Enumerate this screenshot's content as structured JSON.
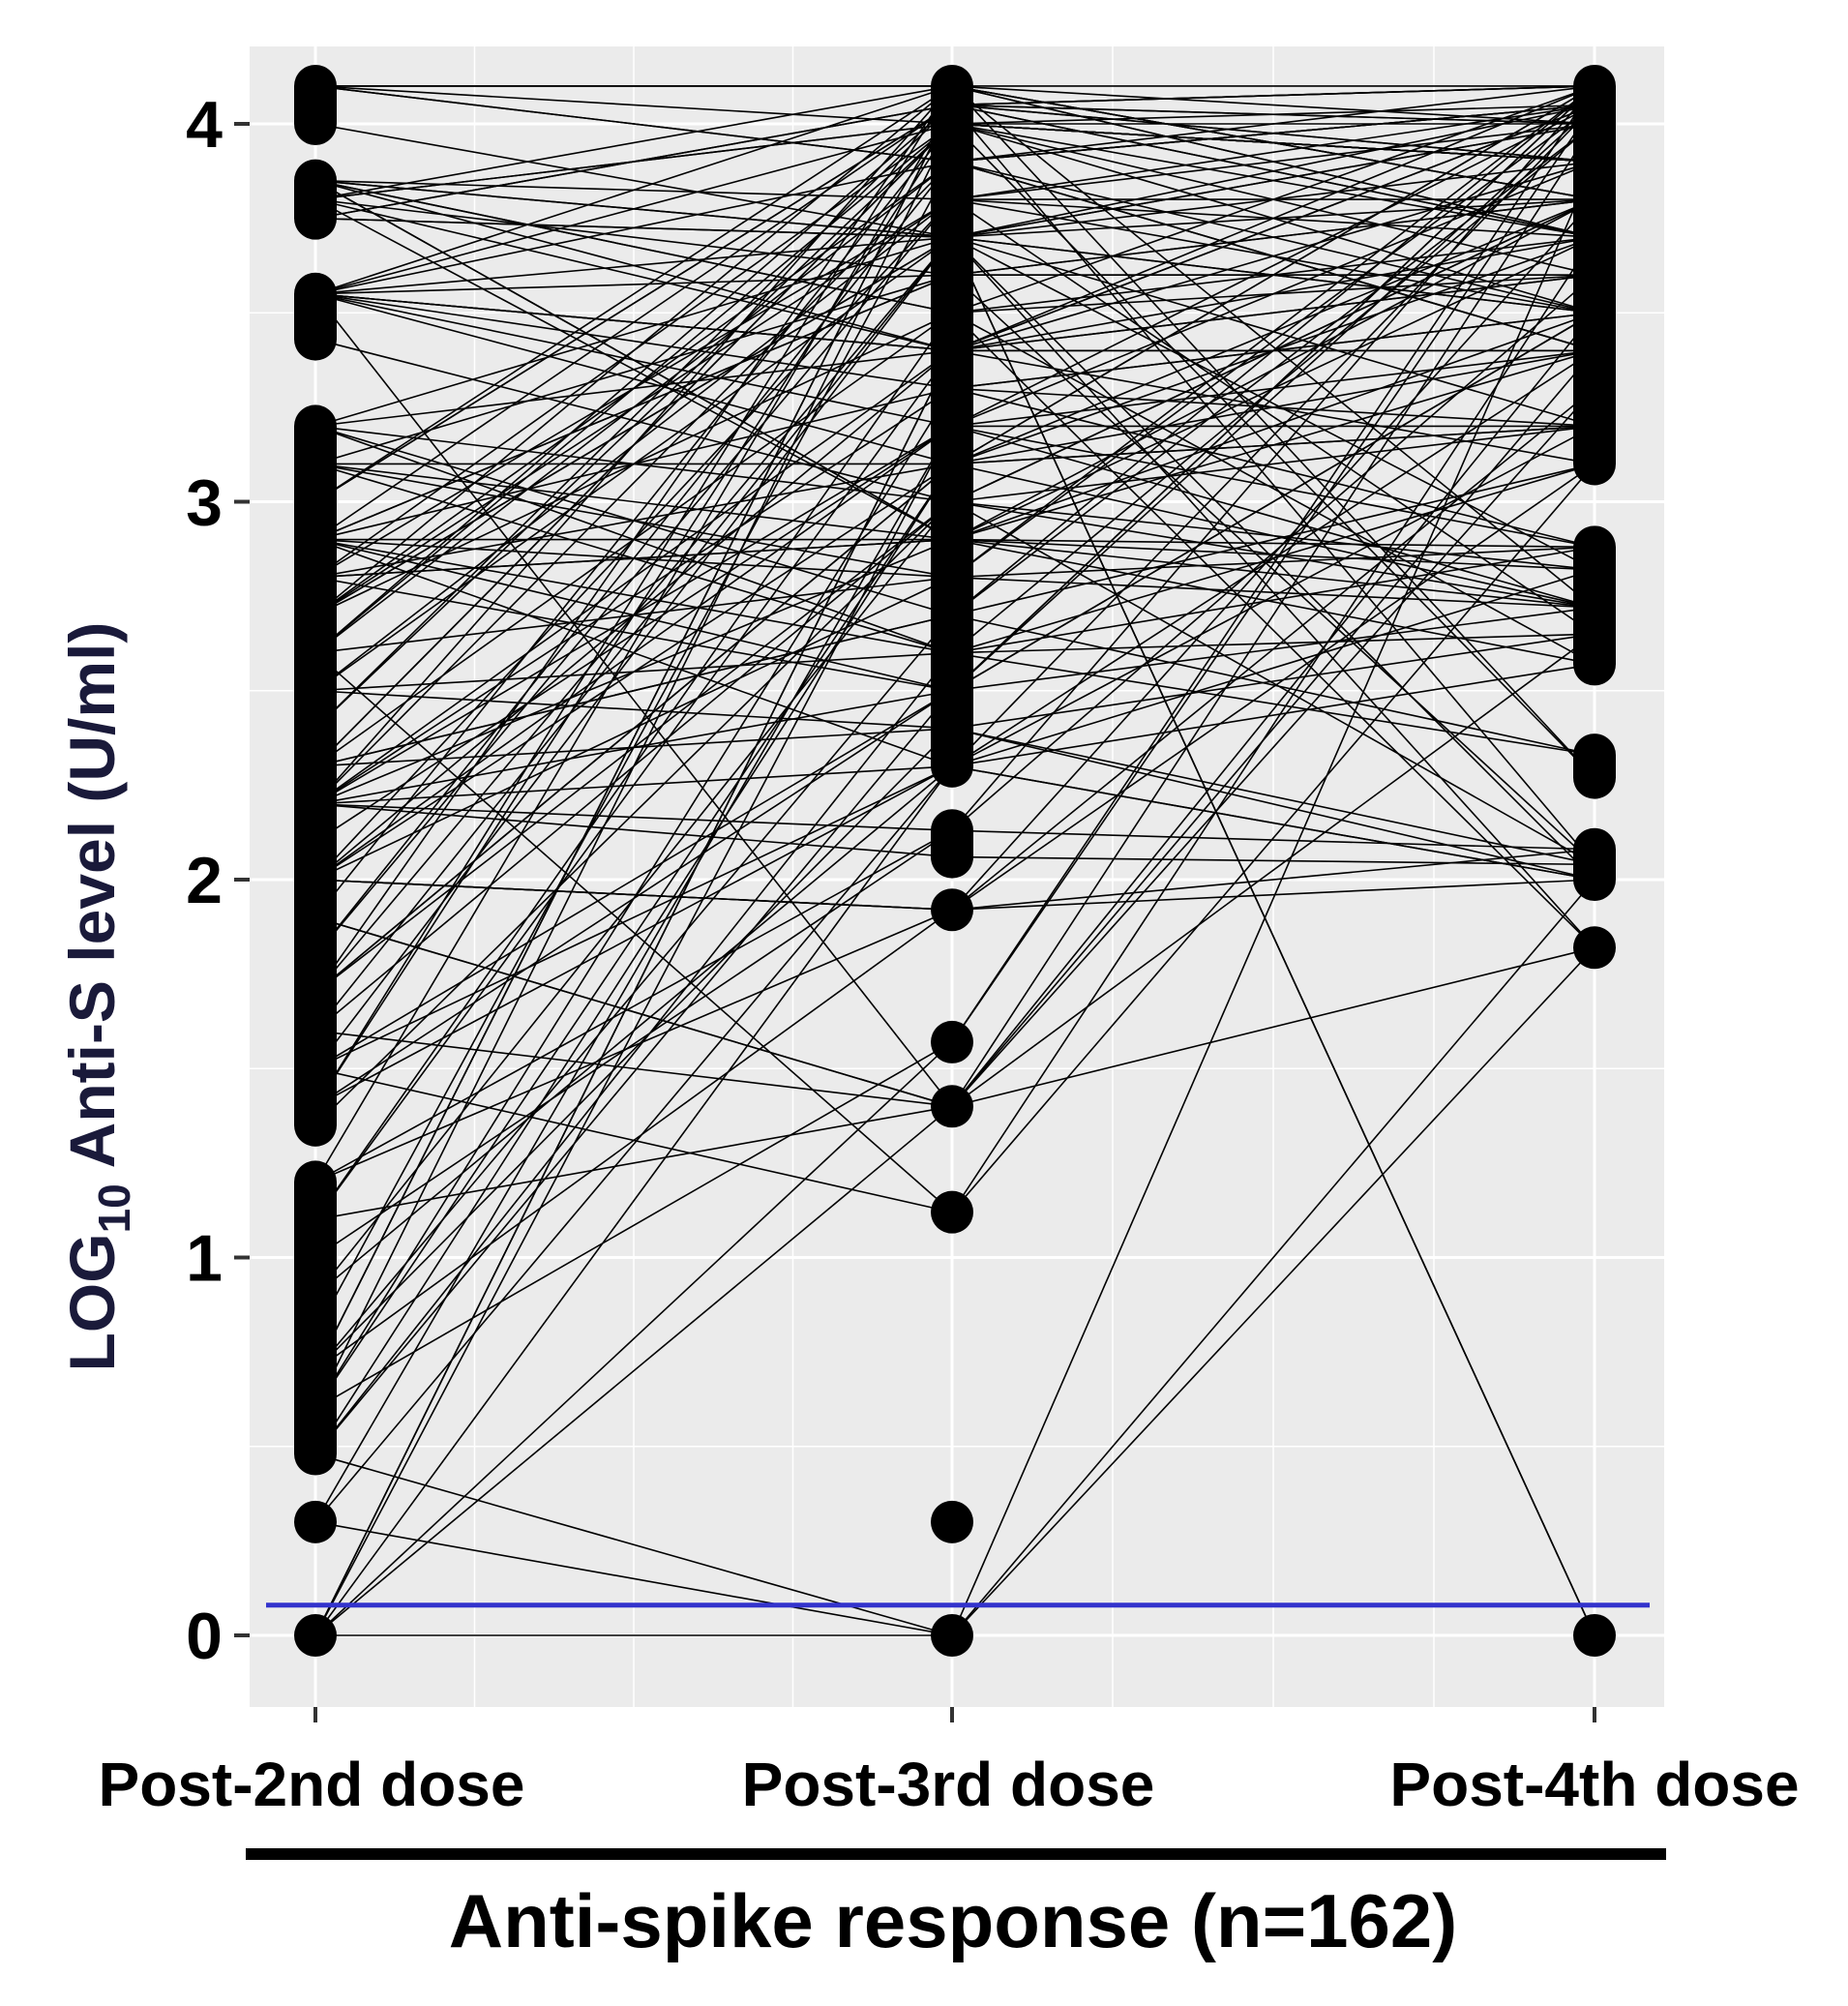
{
  "chart_data": {
    "type": "line",
    "title": "",
    "ylabel_main": "LOG",
    "ylabel_sub": "10",
    "ylabel_rest": " Anti-S level (U/ml)",
    "xlabel": "Anti-spike response (n=162)",
    "categories": [
      "Post-2nd dose",
      "Post-3rd dose",
      "Post-4th dose"
    ],
    "yticks": [
      "0",
      "1",
      "2",
      "3",
      "4"
    ],
    "ylim": [
      -0.2,
      4.3
    ],
    "threshold": 0.08,
    "threshold_color": "#3333cc",
    "point_color": "#000000",
    "line_color": "#000000",
    "panel_color": "#ebebeb",
    "n": 162,
    "points": {
      "Post-2nd dose": [
        4.1,
        4.0,
        3.85,
        3.8,
        3.75,
        3.55,
        3.43,
        3.2,
        3.1,
        3.0,
        2.9,
        2.8,
        2.7,
        2.6,
        2.5,
        2.4,
        2.3,
        2.2,
        2.1,
        2.0,
        1.9,
        1.8,
        1.7,
        1.6,
        1.5,
        1.4,
        1.35,
        1.2,
        1.1,
        1.0,
        0.9,
        0.8,
        0.7,
        0.6,
        0.48,
        0.3,
        0.0
      ],
      "Post-3rd dose": [
        4.1,
        4.05,
        4.0,
        3.9,
        3.8,
        3.7,
        3.6,
        3.5,
        3.4,
        3.3,
        3.2,
        3.1,
        3.0,
        2.9,
        2.8,
        2.7,
        2.6,
        2.5,
        2.4,
        2.3,
        2.13,
        2.06,
        1.92,
        1.57,
        1.4,
        1.12,
        0.3,
        0.0
      ],
      "Post-4th dose": [
        4.1,
        4.05,
        4.0,
        3.9,
        3.8,
        3.7,
        3.6,
        3.5,
        3.4,
        3.3,
        3.2,
        3.1,
        2.88,
        2.82,
        2.72,
        2.65,
        2.57,
        2.33,
        2.27,
        2.08,
        2.04,
        2.0,
        1.82,
        0.0
      ]
    }
  }
}
